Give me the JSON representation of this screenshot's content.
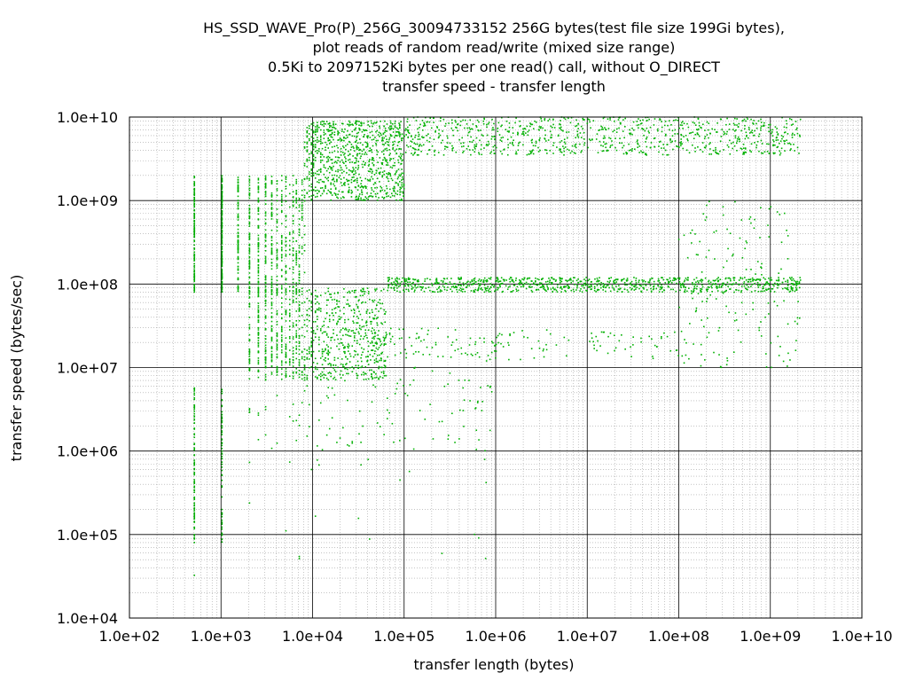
{
  "chart_data": {
    "type": "scatter",
    "title_lines": [
      "HS_SSD_WAVE_Pro(P)_256G_30094733152 256G bytes(test file size 199Gi bytes),",
      "plot reads of random read/write (mixed size range)",
      "0.5Ki to 2097152Ki bytes per one read() call, without O_DIRECT",
      "transfer speed - transfer length"
    ],
    "xlabel": "transfer length (bytes)",
    "ylabel": "transfer speed (bytes/sec)",
    "x_scale": "log",
    "y_scale": "log",
    "xlim": [
      100,
      10000000000
    ],
    "ylim": [
      10000,
      10000000000
    ],
    "x_ticks": [
      "1.0e+02",
      "1.0e+03",
      "1.0e+04",
      "1.0e+05",
      "1.0e+06",
      "1.0e+07",
      "1.0e+08",
      "1.0e+09",
      "1.0e+10"
    ],
    "y_ticks": [
      "1.0e+10",
      "1.0e+09",
      "1.0e+08",
      "1.0e+07",
      "1.0e+06",
      "1.0e+05",
      "1.0e+04"
    ],
    "grid": true,
    "legend": "none",
    "point_color": "#00b000",
    "series": [
      {
        "clusters": [
          {
            "x_min": 512,
            "x_max": 8192,
            "y_min": 80000000,
            "y_max": 2000000000,
            "density": "dense"
          },
          {
            "x_min": 8192,
            "x_max": 100000,
            "y_min": 1000000000,
            "y_max": 9000000000,
            "density": "dense"
          },
          {
            "x_min": 100000,
            "x_max": 2147483648,
            "y_min": 3500000000,
            "y_max": 10000000000,
            "density": "dense"
          },
          {
            "x_min": 2048,
            "x_max": 65536,
            "y_min": 7000000,
            "y_max": 90000000,
            "density": "dense"
          },
          {
            "x_min": 65536,
            "x_max": 2147483648,
            "y_min": 80000000,
            "y_max": 120000000,
            "density": "dense"
          },
          {
            "x_min": 512,
            "x_max": 1024,
            "y_min": 80000,
            "y_max": 6000000,
            "density": "sparse"
          },
          {
            "x_min": 2048,
            "x_max": 1000000,
            "y_min": 1000000,
            "y_max": 20000000,
            "density": "sparse"
          },
          {
            "x_min": 20000,
            "x_max": 100000000,
            "y_min": 12000000,
            "y_max": 30000000,
            "density": "sparse"
          },
          {
            "x_min": 100000000,
            "x_max": 2147483648,
            "y_min": 10000000,
            "y_max": 1000000000,
            "density": "sparse"
          },
          {
            "x_min": 512,
            "x_max": 1000000,
            "y_min": 25000,
            "y_max": 1000000,
            "density": "very-sparse"
          }
        ]
      }
    ]
  }
}
